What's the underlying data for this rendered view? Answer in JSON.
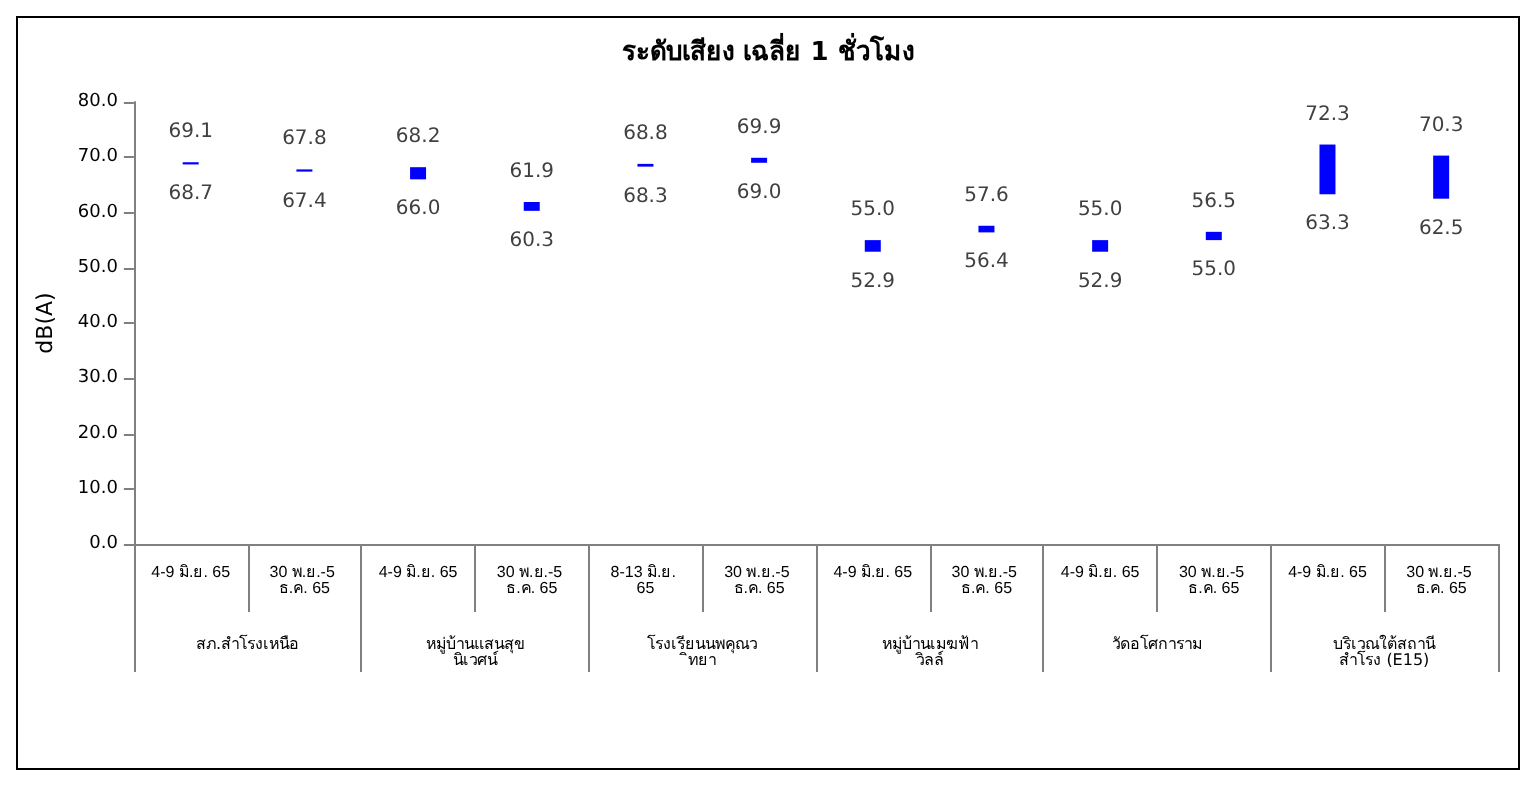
{
  "chart_data": {
    "type": "bar",
    "title": "ระดับเสียง เฉลี่ย 1 ชั่วโมง",
    "ylabel": "dB(A)",
    "categories": [
      "4-9 มิ.ย. 65",
      "30 พ.ย.-5 ธ.ค. 65",
      "4-9 มิ.ย. 65",
      "30 พ.ย.-5 ธ.ค. 65",
      "8-13 มิ.ย. 65",
      "30 พ.ย.-5 ธ.ค. 65",
      "4-9 มิ.ย. 65",
      "30 พ.ย.-5 ธ.ค. 65",
      "4-9 มิ.ย. 65",
      "30 พ.ย.-5 ธ.ค. 65",
      "4-9 มิ.ย. 65",
      "30 พ.ย.-5 ธ.ค. 65"
    ],
    "base": [
      68.7,
      67.4,
      66.0,
      60.3,
      68.3,
      69.0,
      52.9,
      56.4,
      52.9,
      55.0,
      63.3,
      62.5
    ],
    "values": [
      0.4,
      0.4,
      2.2,
      1.6,
      0.5,
      0.9,
      2.1,
      1.2,
      2.1,
      1.5,
      9.0,
      7.8
    ],
    "color": "#0000ff",
    "grid": false,
    "ylim": [
      0,
      80
    ],
    "yticks": [
      {
        "value": 0,
        "label": "0.0"
      },
      {
        "value": 10,
        "label": "10.0"
      },
      {
        "value": 20,
        "label": "20.0"
      },
      {
        "value": 30,
        "label": "30.0"
      },
      {
        "value": 40,
        "label": "40.0"
      },
      {
        "value": 50,
        "label": "50.0"
      },
      {
        "value": 60,
        "label": "60.0"
      },
      {
        "value": 70,
        "label": "70.0"
      },
      {
        "value": 80,
        "label": "80.0"
      }
    ],
    "annotations": [
      "69.1",
      "68.7",
      "67.8",
      "67.4",
      "68.2",
      "66.0",
      "61.9",
      "60.3",
      "68.8",
      "68.3",
      "69.9",
      "69.0",
      "55.0",
      "52.9",
      "57.6",
      "56.4",
      "55.0",
      "52.9",
      "56.5",
      "55.0",
      "72.3",
      "63.3",
      "70.3",
      "62.5",
      "สภ.สำโรงเหนือ",
      "หมู่บ้านแสนสุขนิเวศน์",
      "โรงเรียนนพคุณวิทยา",
      "หมู่บ้านเมฆฟ้าวิลล์",
      "วัดอโศการาม",
      "บริเวณใต้สถานีสำโรง (E15)"
    ]
  }
}
